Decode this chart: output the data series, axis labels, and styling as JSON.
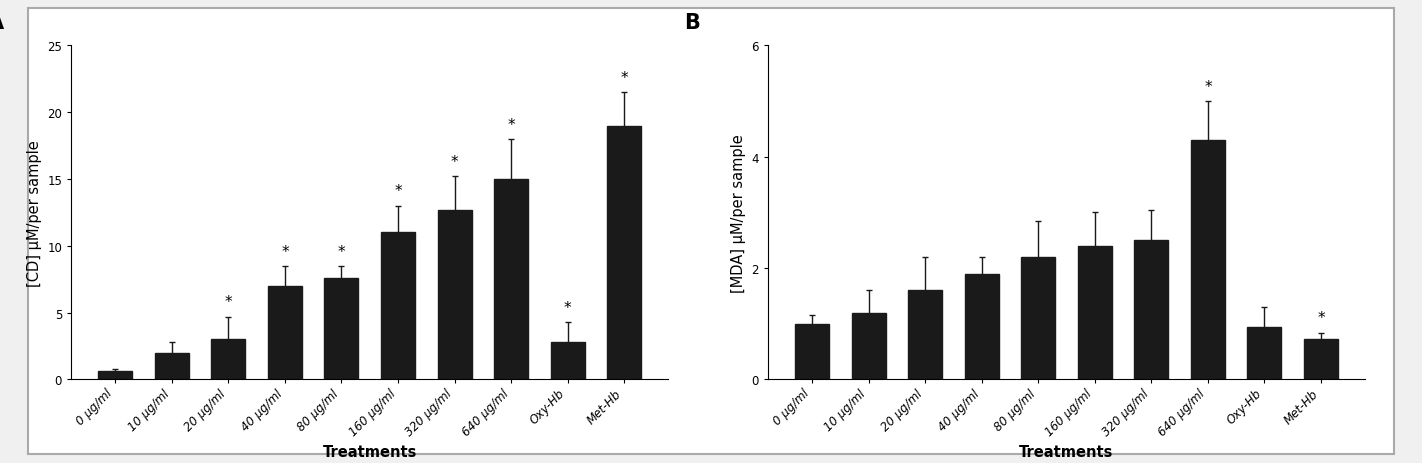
{
  "panel_A": {
    "label": "A",
    "categories": [
      "0 μg/ml",
      "10 μg/ml",
      "20 μg/ml",
      "40 μg/ml",
      "80 μg/ml",
      "160 μg/ml",
      "320 μg/ml",
      "640 μg/ml",
      "Oxy-Hb",
      "Met-Hb"
    ],
    "values": [
      0.6,
      2.0,
      3.0,
      7.0,
      7.6,
      11.0,
      12.7,
      15.0,
      2.8,
      19.0
    ],
    "errors": [
      0.2,
      0.8,
      1.7,
      1.5,
      0.9,
      2.0,
      2.5,
      3.0,
      1.5,
      2.5
    ],
    "significance": [
      false,
      false,
      true,
      true,
      true,
      true,
      true,
      true,
      true,
      true
    ],
    "ylabel": "[CD] μM/per sample",
    "ylim": [
      0,
      25
    ],
    "yticks": [
      0,
      5,
      10,
      15,
      20,
      25
    ],
    "xlabel": "Treatments"
  },
  "panel_B": {
    "label": "B",
    "categories": [
      "0 μg/ml",
      "10 μg/ml",
      "20 μg/ml",
      "40 μg/ml",
      "80 μg/ml",
      "160 μg/ml",
      "320 μg/ml",
      "640 μg/ml",
      "Oxy-Hb",
      "Met-Hb"
    ],
    "values": [
      1.0,
      1.2,
      1.6,
      1.9,
      2.2,
      2.4,
      2.5,
      4.3,
      0.95,
      0.72
    ],
    "errors": [
      0.15,
      0.4,
      0.6,
      0.3,
      0.65,
      0.6,
      0.55,
      0.7,
      0.35,
      0.12
    ],
    "significance": [
      false,
      false,
      false,
      false,
      false,
      false,
      false,
      true,
      false,
      true
    ],
    "ylabel": "[MDA] μM/per sample",
    "ylim": [
      0,
      6
    ],
    "yticks": [
      0,
      2,
      4,
      6
    ],
    "xlabel": "Treatments"
  },
  "bar_color": "#1a1a1a",
  "error_color": "#1a1a1a",
  "background_color": "#ffffff",
  "outer_background": "#f0f0f0",
  "bar_width": 0.6,
  "tick_fontsize": 8.5,
  "axis_label_fontsize": 10.5,
  "panel_label_fontsize": 15,
  "star_fontsize": 11
}
